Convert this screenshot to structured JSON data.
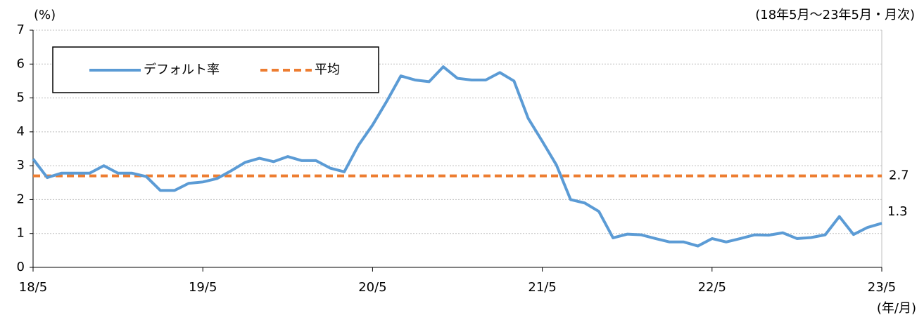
{
  "chart_data": {
    "type": "line",
    "y_label": "(%)",
    "subtitle": "(18年5月～23年5月・月次)",
    "x_label": "(年/月)",
    "categories": [
      "18/5",
      null,
      null,
      null,
      null,
      null,
      null,
      null,
      null,
      null,
      null,
      null,
      "19/5",
      null,
      null,
      null,
      null,
      null,
      null,
      null,
      null,
      null,
      null,
      null,
      "20/5",
      null,
      null,
      null,
      null,
      null,
      null,
      null,
      null,
      null,
      null,
      null,
      "21/5",
      null,
      null,
      null,
      null,
      null,
      null,
      null,
      null,
      null,
      null,
      null,
      "22/5",
      null,
      null,
      null,
      null,
      null,
      null,
      null,
      null,
      null,
      null,
      null,
      "23/5"
    ],
    "series": [
      {
        "name": "デフォルト率",
        "color": "#5b9bd5",
        "values": [
          3.2,
          2.65,
          2.78,
          2.78,
          2.78,
          3.0,
          2.78,
          2.78,
          2.68,
          2.27,
          2.27,
          2.48,
          2.52,
          2.62,
          2.85,
          3.1,
          3.22,
          3.12,
          3.27,
          3.15,
          3.15,
          2.93,
          2.82,
          3.6,
          4.2,
          4.9,
          5.65,
          5.53,
          5.48,
          5.92,
          5.58,
          5.53,
          5.53,
          5.75,
          5.5,
          4.4,
          3.72,
          3.02,
          2.0,
          1.9,
          1.65,
          0.87,
          0.98,
          0.96,
          0.85,
          0.75,
          0.75,
          0.63,
          0.85,
          0.75,
          0.85,
          0.96,
          0.95,
          1.02,
          0.85,
          0.88,
          0.96,
          1.5,
          0.97,
          1.18,
          1.3
        ]
      }
    ],
    "average": {
      "name": "平均",
      "value": 2.7,
      "color": "#ed7d31"
    },
    "ylim": [
      0,
      7
    ],
    "yticks": [
      0,
      1,
      2,
      3,
      4,
      5,
      6,
      7
    ],
    "grid": true
  }
}
